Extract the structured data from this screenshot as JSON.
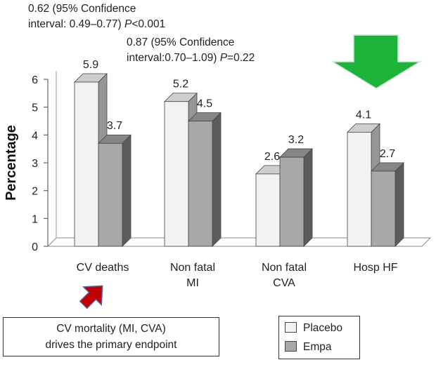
{
  "chart_data": {
    "type": "bar",
    "categories": [
      "CV deaths",
      "Non fatal\nMI",
      "Non fatal\nCVA",
      "Hosp HF"
    ],
    "series": [
      {
        "name": "Placebo",
        "values": [
          5.9,
          5.2,
          2.6,
          4.1
        ],
        "color": "#f2f2f2"
      },
      {
        "name": "Empa",
        "values": [
          3.7,
          4.5,
          3.2,
          2.7
        ],
        "color": "#a8a8a8"
      }
    ],
    "data_labels": [
      [
        "5.9",
        "3.7"
      ],
      [
        "5.2",
        "4.5"
      ],
      [
        "2.6",
        "3.2"
      ],
      [
        "4.1",
        "2.7"
      ]
    ],
    "title": "",
    "xlabel": "",
    "ylabel": "Percentage",
    "ylim": [
      0,
      6
    ],
    "yticks": [
      "0",
      "1",
      "2",
      "3",
      "4",
      "5",
      "6"
    ],
    "legend_position": "bottom-right",
    "grid": false
  },
  "annotations": {
    "hr_cv_deaths": {
      "line1": "0.62 (95% Confidence",
      "line2_prefix": "interval: 0.49–0.77) ",
      "p_label": "P",
      "p_value": "<0.001"
    },
    "hr_overall": {
      "line1": "0.87 (95% Confidence",
      "line2_prefix": "interval:0.70–1.09) ",
      "p_label": "P",
      "p_value": "=0.22"
    },
    "note_line1": "CV mortality (MI, CVA)",
    "note_line2": "drives the primary endpoint"
  },
  "arrows": {
    "green_down_arrow": {
      "icon": "down-arrow-icon",
      "color": "#1db33a"
    },
    "red_up_right_arrow": {
      "icon": "up-right-arrow-icon",
      "color": "#c00000"
    }
  },
  "legend": {
    "placebo_label": "Placebo",
    "empa_label": "Empa",
    "placebo_color": "#f2f2f2",
    "empa_color": "#a8a8a8"
  }
}
